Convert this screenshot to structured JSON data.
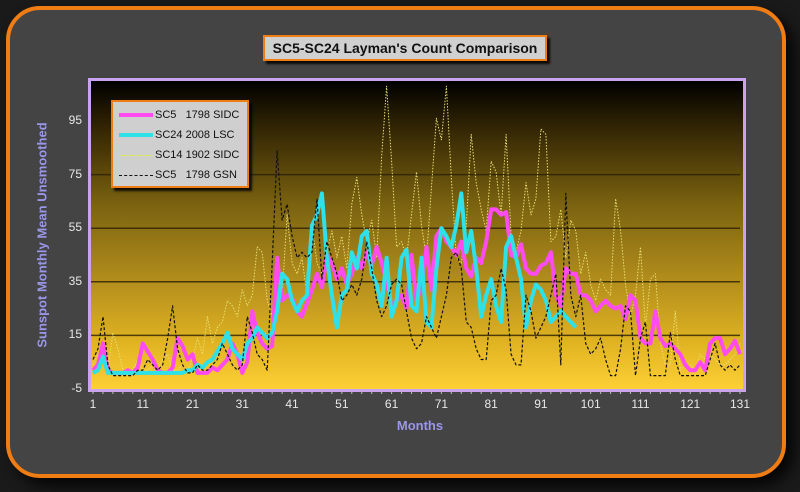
{
  "chart_data": {
    "type": "line",
    "title": "SC5-SC24 Layman's Count Comparison",
    "xlabel": "Months",
    "ylabel": "Sunspot Monthly Mean Unsmoothed",
    "ylim": [
      -5,
      110
    ],
    "xlim": [
      1,
      131
    ],
    "yticks": [
      "95",
      "75",
      "55",
      "35",
      "15",
      "-5"
    ],
    "xticks": [
      "1",
      "11",
      "21",
      "31",
      "41",
      "51",
      "61",
      "71",
      "81",
      "91",
      "101",
      "111",
      "121",
      "131"
    ],
    "grid": "horizontal",
    "legend_position": "upper-left",
    "series": [
      {
        "name": "SC5   1798 SIDC",
        "color": "#ff4bf0",
        "style": "solid-thick",
        "values": [
          2,
          4,
          12,
          2,
          1,
          1,
          1,
          2,
          1,
          3,
          12,
          9,
          6,
          2,
          1,
          1,
          3,
          14,
          11,
          6,
          8,
          1,
          1,
          1,
          3,
          2,
          4,
          6,
          12,
          8,
          1,
          5,
          24,
          16,
          12,
          10,
          11,
          44,
          28,
          30,
          29,
          24,
          22,
          27,
          32,
          38,
          33,
          45,
          42,
          36,
          40,
          34,
          38,
          44,
          40,
          46,
          41,
          48,
          42,
          35,
          26,
          28,
          30,
          25,
          45,
          28,
          33,
          48,
          32,
          52,
          55,
          50,
          48,
          45,
          50,
          40,
          37,
          44,
          42,
          50,
          62,
          62,
          60,
          61,
          45,
          44,
          49,
          40,
          38,
          38,
          41,
          42,
          46,
          30,
          26,
          40,
          38,
          38,
          30,
          30,
          28,
          24,
          26,
          28,
          26,
          25,
          26,
          21,
          30,
          28,
          14,
          12,
          12,
          24,
          14,
          11,
          12,
          10,
          8,
          4,
          2,
          2,
          5,
          2,
          12,
          14,
          14,
          8,
          10,
          13,
          8
        ]
      },
      {
        "name": "SC24 2008 LSC",
        "color": "#2ee0e8",
        "style": "solid-thick",
        "values": [
          1,
          2,
          7,
          1,
          1,
          1,
          1,
          1,
          1,
          1,
          1,
          1,
          1,
          1,
          1,
          1,
          1,
          1,
          1,
          2,
          2,
          4,
          3,
          5,
          6,
          9,
          12,
          16,
          10,
          8,
          6,
          12,
          14,
          18,
          16,
          14,
          16,
          24,
          38,
          36,
          28,
          24,
          28,
          30,
          56,
          60,
          68,
          44,
          30,
          18,
          30,
          32,
          46,
          40,
          52,
          54,
          38,
          34,
          26,
          44,
          22,
          28,
          44,
          47,
          26,
          24,
          44,
          20,
          18,
          40,
          55,
          52,
          48,
          56,
          68,
          46,
          54,
          40,
          22,
          30,
          36,
          26,
          20,
          48,
          52,
          44,
          36,
          18,
          28,
          34,
          32,
          28,
          20,
          22,
          24,
          22,
          20,
          18
        ]
      },
      {
        "name": "SC14 1902 SIDC",
        "color": "#e8e070",
        "style": "dotted-thin",
        "values": [
          4,
          8,
          6,
          2,
          16,
          10,
          2,
          2,
          2,
          6,
          2,
          2,
          4,
          2,
          6,
          8,
          2,
          2,
          4,
          2,
          6,
          14,
          8,
          22,
          12,
          18,
          20,
          28,
          26,
          22,
          32,
          26,
          30,
          48,
          46,
          28,
          22,
          44,
          30,
          60,
          42,
          38,
          44,
          30,
          56,
          42,
          38,
          46,
          54,
          44,
          52,
          40,
          64,
          74,
          60,
          50,
          58,
          44,
          82,
          108,
          80,
          48,
          50,
          44,
          60,
          76,
          56,
          44,
          70,
          96,
          88,
          108,
          74,
          44,
          42,
          56,
          90,
          72,
          62,
          54,
          80,
          76,
          60,
          90,
          52,
          46,
          54,
          72,
          60,
          66,
          92,
          90,
          50,
          52,
          62,
          44,
          58,
          54,
          38,
          46,
          34,
          28,
          36,
          32,
          30,
          66,
          54,
          34,
          22,
          30,
          48,
          18,
          36,
          38,
          12,
          4,
          4,
          24,
          2,
          4,
          4,
          2,
          8,
          6,
          8,
          6,
          4,
          4,
          6,
          8,
          12
        ]
      },
      {
        "name": "SC5   1798 GSN",
        "color": "#111111",
        "style": "dashed",
        "values": [
          6,
          10,
          22,
          4,
          0,
          0,
          0,
          0,
          0,
          2,
          2,
          6,
          4,
          2,
          4,
          14,
          26,
          10,
          4,
          1,
          1,
          4,
          2,
          2,
          4,
          6,
          12,
          8,
          4,
          2,
          4,
          22,
          16,
          8,
          6,
          2,
          42,
          84,
          58,
          64,
          52,
          44,
          46,
          44,
          46,
          66,
          36,
          50,
          44,
          38,
          28,
          30,
          34,
          30,
          36,
          50,
          40,
          28,
          22,
          26,
          34,
          36,
          34,
          24,
          14,
          10,
          12,
          22,
          18,
          14,
          22,
          30,
          44,
          46,
          40,
          20,
          18,
          10,
          6,
          6,
          28,
          30,
          40,
          32,
          8,
          4,
          4,
          30,
          24,
          14,
          18,
          22,
          30,
          38,
          4,
          68,
          30,
          22,
          30,
          12,
          8,
          10,
          14,
          6,
          0,
          0,
          10,
          26,
          24,
          0,
          14,
          20,
          0,
          0,
          0,
          0,
          16,
          6,
          0,
          0,
          0,
          0,
          0,
          0,
          6,
          12,
          4,
          2,
          4,
          2,
          4
        ]
      }
    ]
  },
  "legend": {
    "items": [
      {
        "label": "SC5   1798 SIDC"
      },
      {
        "label": "SC24 2008 LSC"
      },
      {
        "label": "SC14 1902 SIDC"
      },
      {
        "label": "SC5   1798 GSN"
      }
    ]
  },
  "axes": {
    "ylabel": "Sunspot Monthly Mean Unsmoothed",
    "xlabel": "Months"
  },
  "colors": {
    "frame_border": "#f07c14",
    "frame_bg": "#444444",
    "plot_border": "#c9a3f0",
    "axis_label": "#9a96e8"
  }
}
